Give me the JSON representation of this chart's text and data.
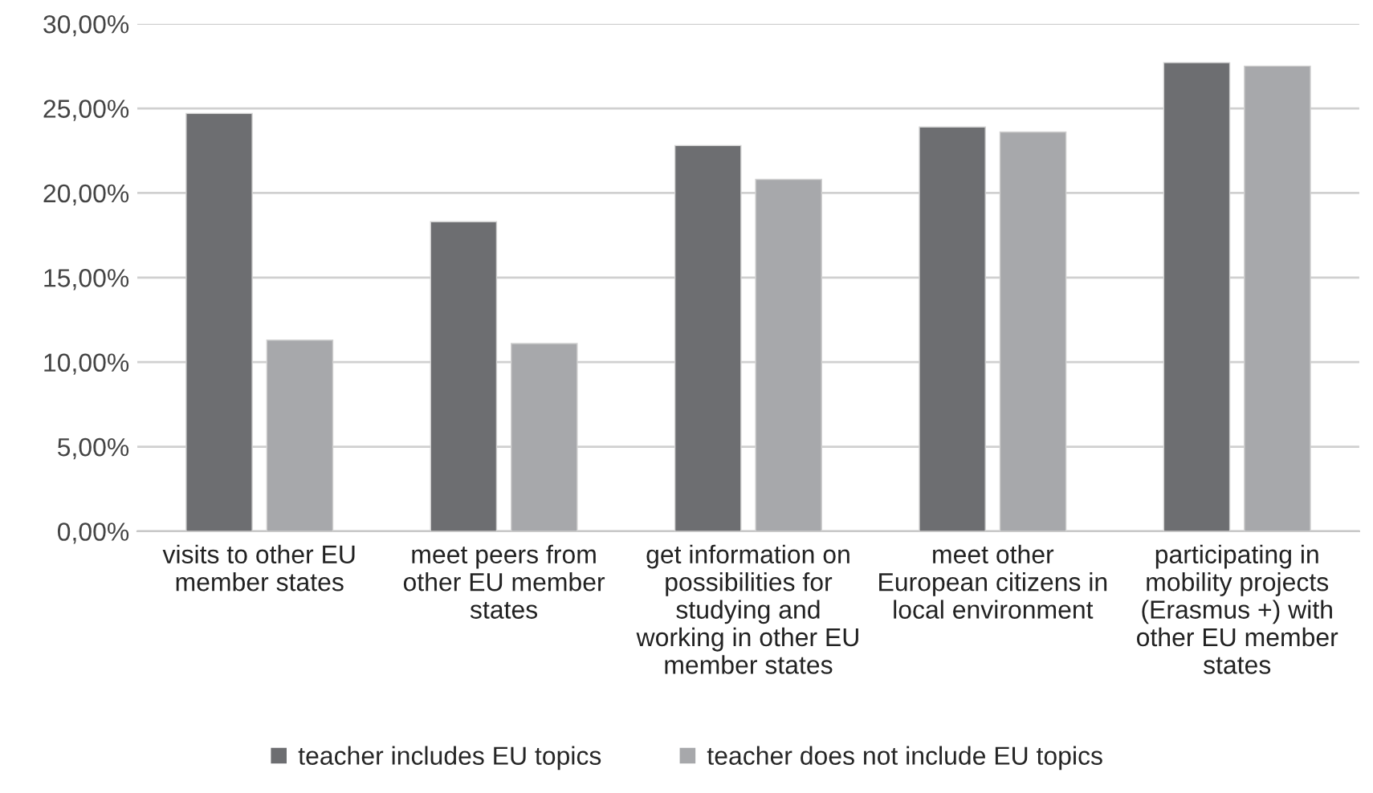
{
  "chart_data": {
    "type": "bar",
    "categories": [
      "visits to other EU\nmember states",
      "meet peers from\nother EU member\nstates",
      "get information on\npossibilities for\nstudying and\nworking in other EU\nmember states",
      "meet other\nEuropean citizens in\nlocal environment",
      "participating in\nmobility projects\n(Erasmus +) with\nother EU member\nstates"
    ],
    "series": [
      {
        "name": "teacher includes EU topics",
        "color": "#6d6e71",
        "values": [
          24.7,
          18.3,
          22.8,
          23.9,
          27.7
        ]
      },
      {
        "name": "teacher does not include EU topics",
        "color": "#a7a8ab",
        "values": [
          11.3,
          11.1,
          20.8,
          23.6,
          27.5
        ]
      }
    ],
    "ylim": [
      0,
      30
    ],
    "yticks": [
      {
        "value": 0,
        "label": "0,00%"
      },
      {
        "value": 5,
        "label": "5,00%"
      },
      {
        "value": 10,
        "label": "10,00%"
      },
      {
        "value": 15,
        "label": "15,00%"
      },
      {
        "value": 20,
        "label": "20,00%"
      },
      {
        "value": 25,
        "label": "25,00%"
      },
      {
        "value": 30,
        "label": "30,00%"
      }
    ],
    "grid": "y",
    "legend": "bottom"
  }
}
